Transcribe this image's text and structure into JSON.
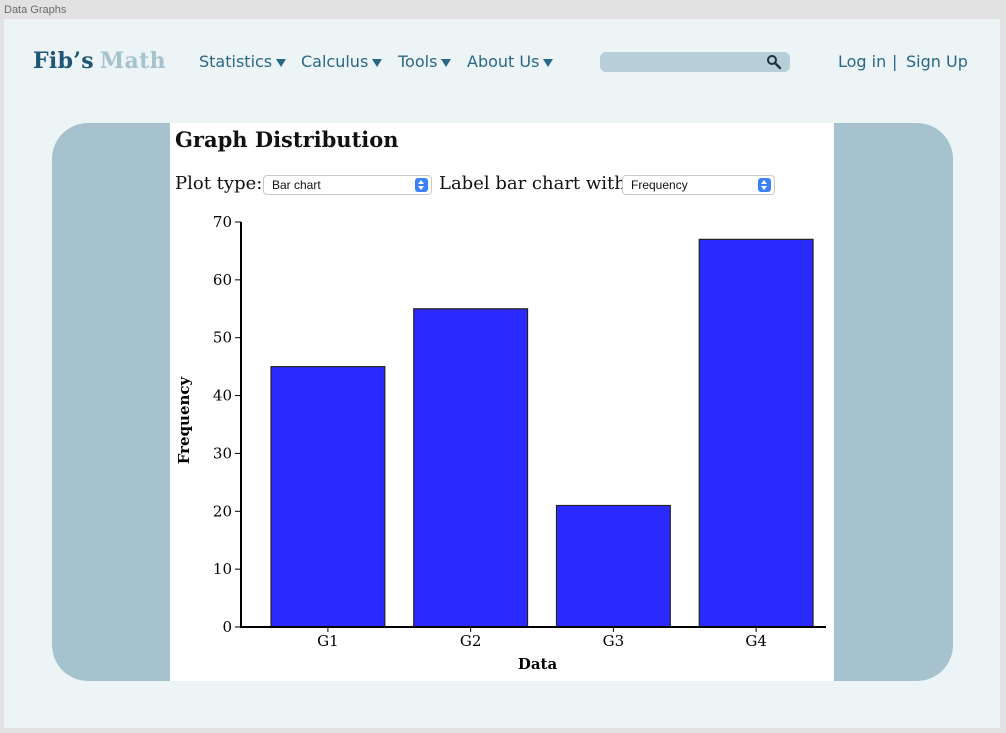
{
  "window": {
    "title": "Data Graphs"
  },
  "brand": {
    "part1": "Fib’s",
    "part2": "Math"
  },
  "nav": {
    "items": [
      {
        "label": "Statistics"
      },
      {
        "label": "Calculus"
      },
      {
        "label": "Tools"
      },
      {
        "label": "About Us"
      }
    ]
  },
  "search": {
    "placeholder": "",
    "icon": "search-icon"
  },
  "auth": {
    "login": "Log in",
    "separator": "|",
    "signup": "Sign Up"
  },
  "colors": {
    "brand_dark": "#1f5676",
    "brand_light": "#a6c2cf",
    "nav_text": "#2a6787",
    "panel": "#a6c2cf",
    "bar_fill": "#2b2bff",
    "page_bg": "#edf4f6"
  },
  "graph": {
    "title": "Graph Distribution",
    "plot_type_label": "Plot type:",
    "plot_type_value": "Bar chart",
    "label_with_label": "Label bar chart with:",
    "label_with_value": "Frequency"
  },
  "chart_data": {
    "type": "bar",
    "categories": [
      "G1",
      "G2",
      "G3",
      "G4"
    ],
    "values": [
      45,
      55,
      21,
      67
    ],
    "title": "",
    "xlabel": "Data",
    "ylabel": "Frequency",
    "ylim": [
      0,
      70
    ],
    "yticks": [
      0,
      10,
      20,
      30,
      40,
      50,
      60,
      70
    ],
    "grid": false
  }
}
